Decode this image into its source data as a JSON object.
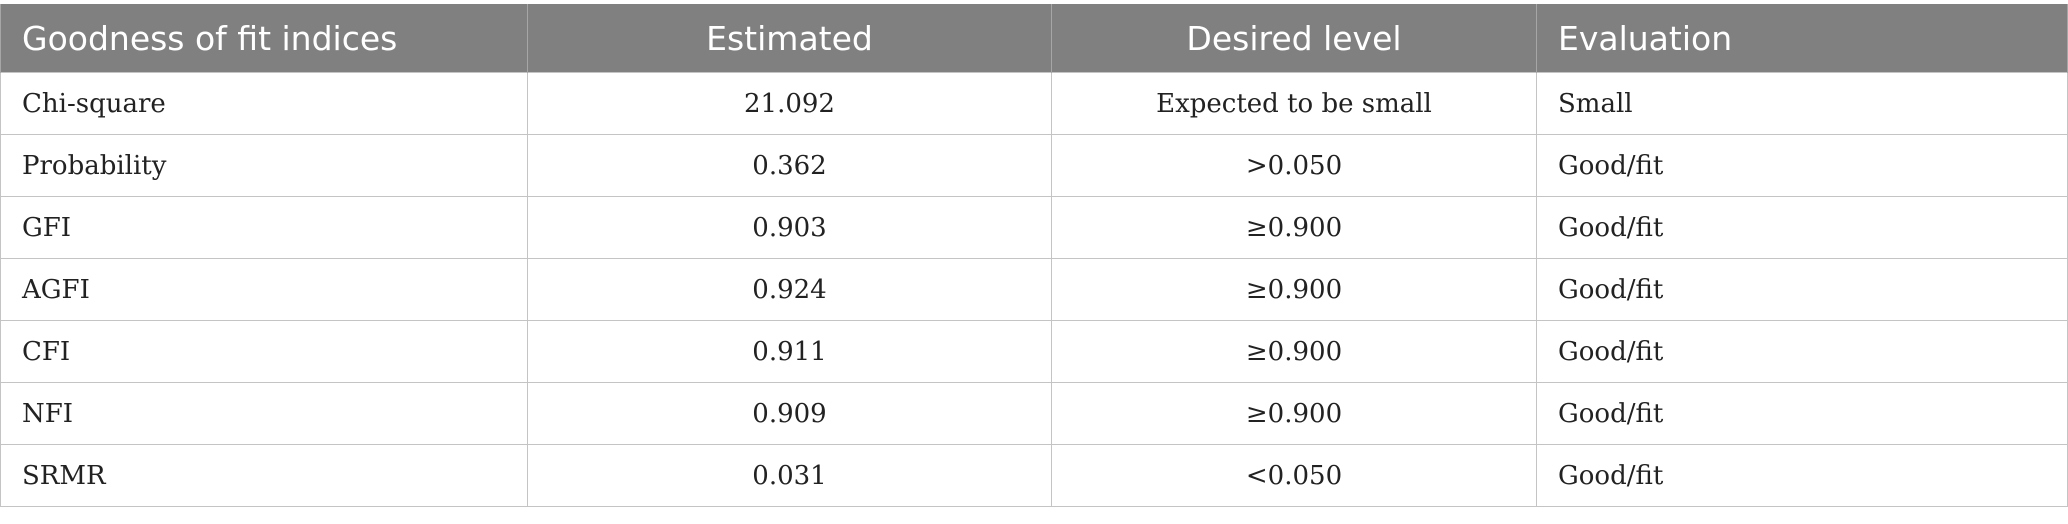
{
  "table": {
    "headers": [
      "Goodness of fit indices",
      "Estimated",
      "Desired level",
      "Evaluation"
    ],
    "rows": [
      [
        "Chi-square",
        "21.092",
        "Expected to be small",
        "Small"
      ],
      [
        "Probability",
        "0.362",
        ">0.050",
        "Good/fit"
      ],
      [
        "GFI",
        "0.903",
        "≥0.900",
        "Good/fit"
      ],
      [
        "AGFI",
        "0.924",
        "≥0.900",
        "Good/fit"
      ],
      [
        "CFI",
        "0.911",
        "≥0.900",
        "Good/fit"
      ],
      [
        "NFI",
        "0.909",
        "≥0.900",
        "Good/fit"
      ],
      [
        "SRMR",
        "0.031",
        "<0.050",
        "Good/fit"
      ]
    ]
  }
}
